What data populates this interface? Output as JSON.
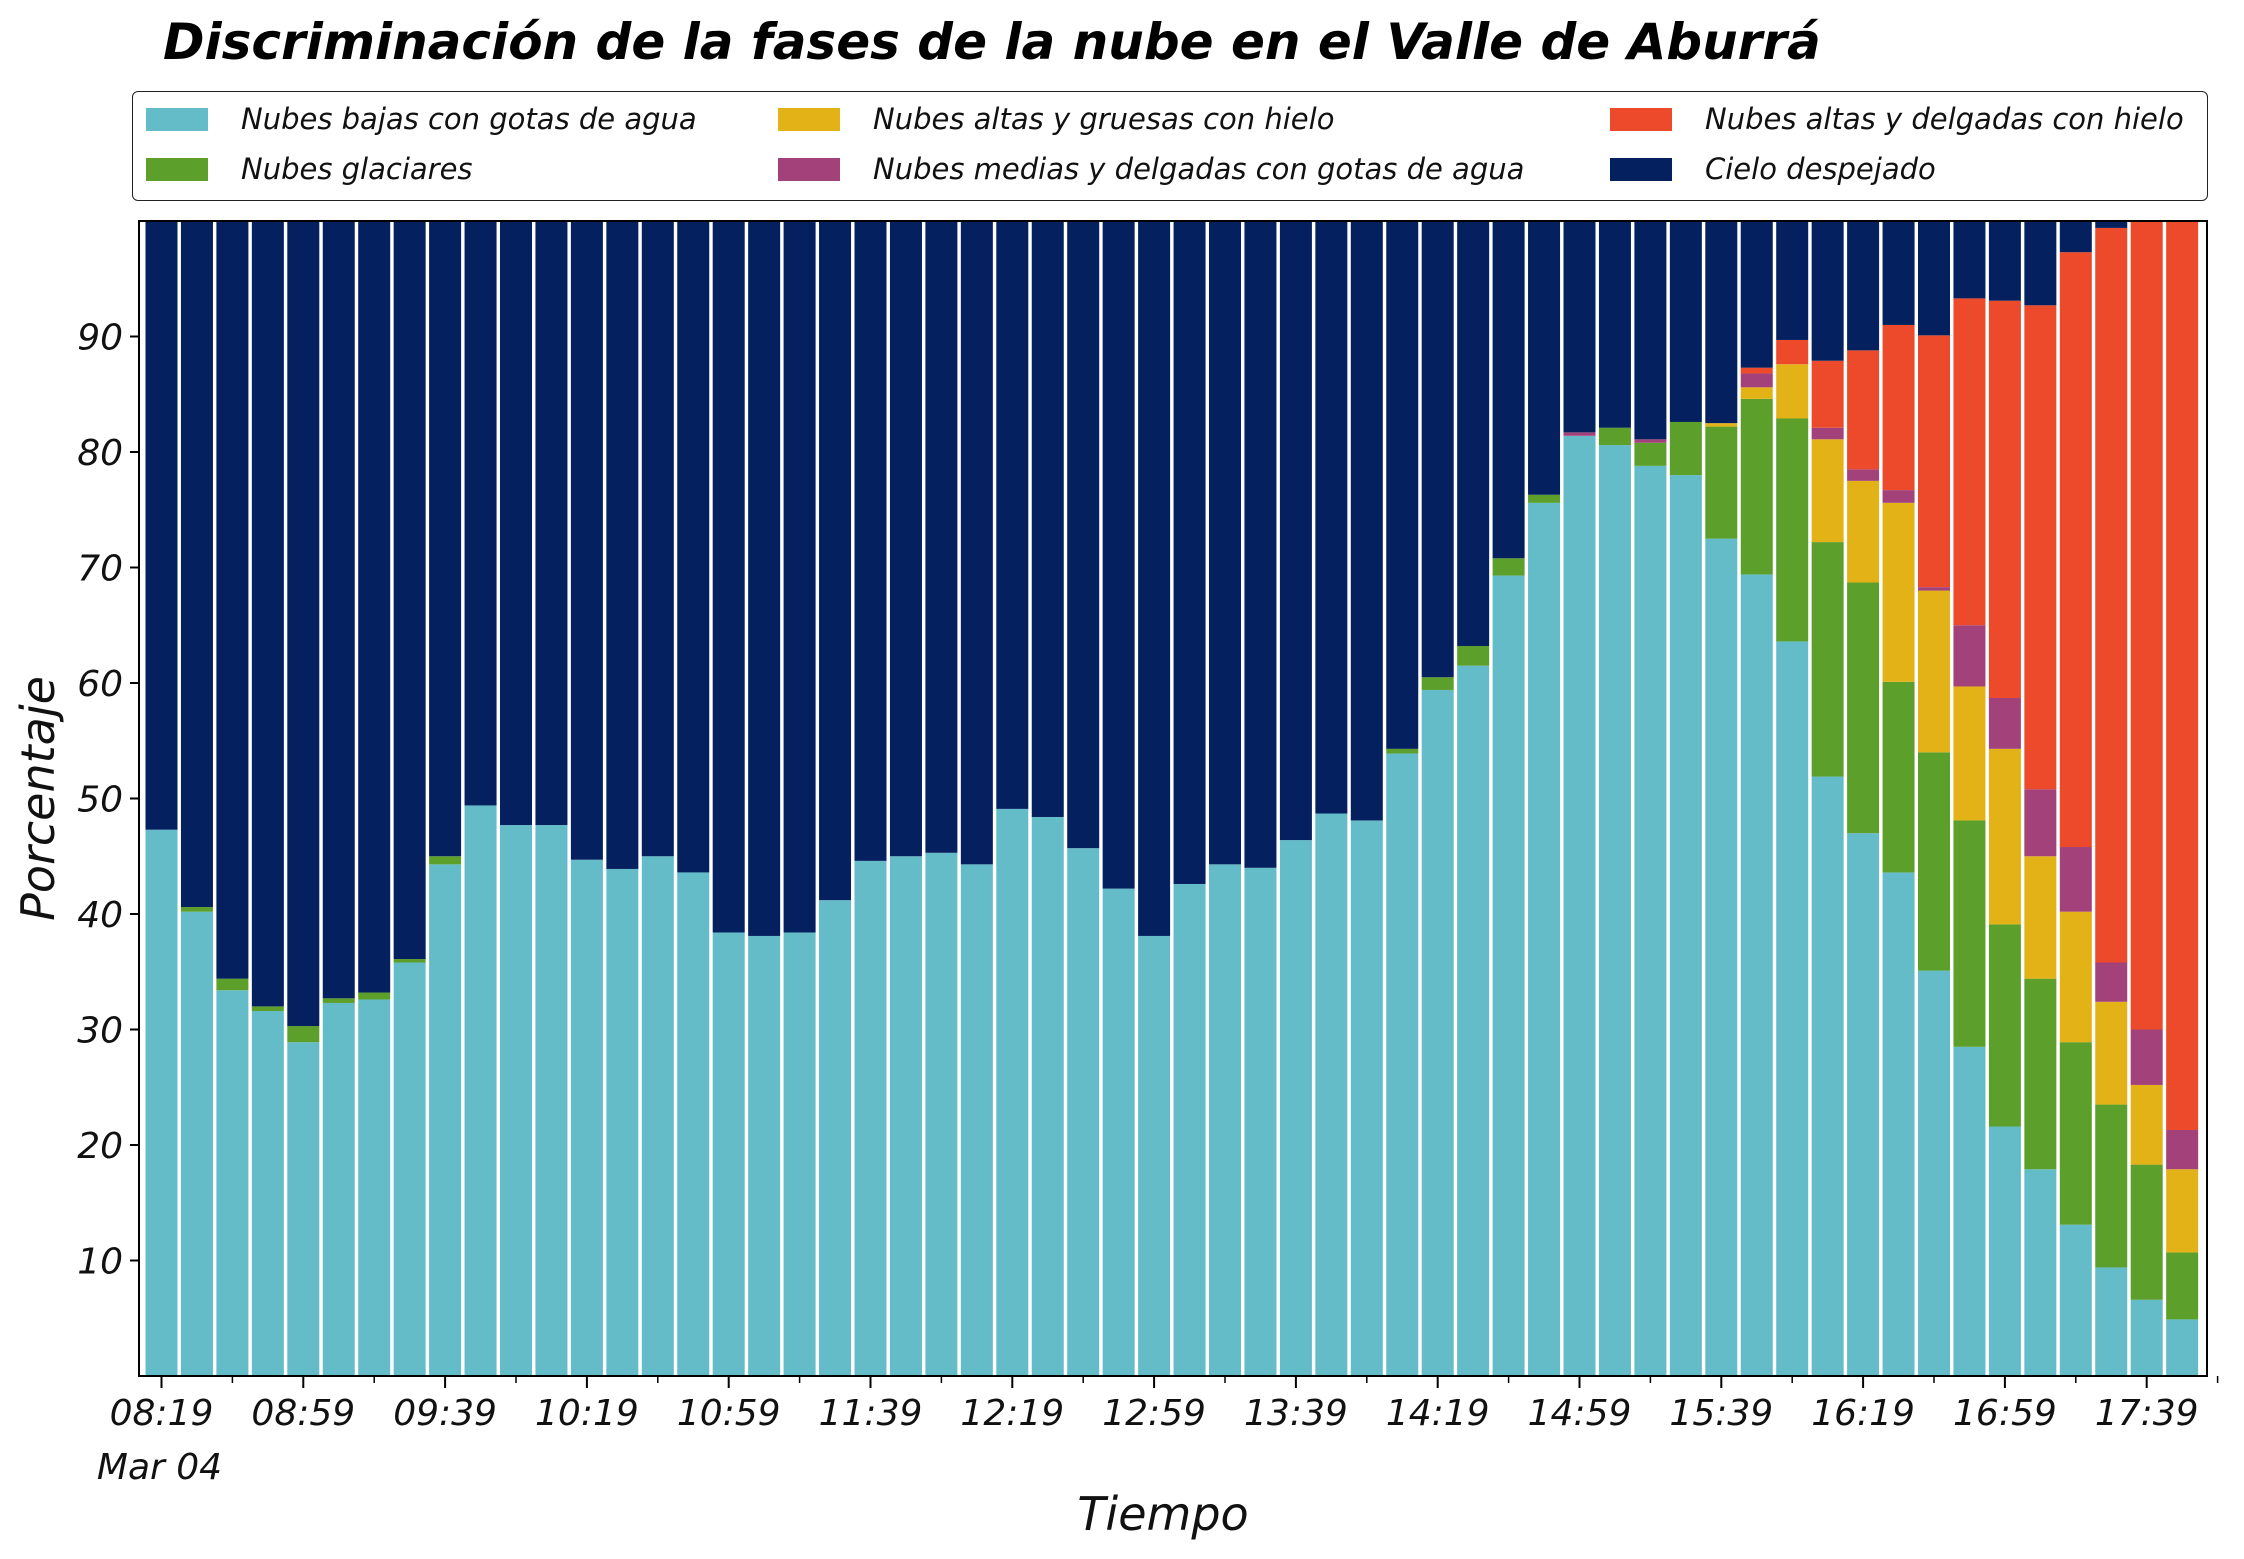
{
  "chart_data": {
    "type": "bar",
    "stacked": true,
    "title": "Discriminación de la fases de la nube en el Valle de Aburrá",
    "xlabel": "Tiempo",
    "ylabel": "Porcentaje",
    "ylim": [
      0,
      100
    ],
    "yticks": [
      10,
      20,
      30,
      40,
      50,
      60,
      70,
      80,
      90
    ],
    "xticks": [
      {
        "index": 0,
        "label": "08:19"
      },
      {
        "index": 4,
        "label": "08:59"
      },
      {
        "index": 8,
        "label": "09:39"
      },
      {
        "index": 12,
        "label": "10:19"
      },
      {
        "index": 16,
        "label": "10:59"
      },
      {
        "index": 20,
        "label": "11:39"
      },
      {
        "index": 24,
        "label": "12:19"
      },
      {
        "index": 28,
        "label": "12:59"
      },
      {
        "index": 32,
        "label": "13:39"
      },
      {
        "index": 36,
        "label": "14:19"
      },
      {
        "index": 40,
        "label": "14:59"
      },
      {
        "index": 44,
        "label": "15:39"
      },
      {
        "index": 48,
        "label": "16:19"
      },
      {
        "index": 52,
        "label": "16:59"
      },
      {
        "index": 56,
        "label": "17:39"
      }
    ],
    "date_label": "Mar 04",
    "grid": false,
    "legend_position": "top",
    "series": [
      {
        "name": "Nubes bajas con gotas de agua",
        "color": "#64bcc8",
        "values": [
          47.3,
          40.2,
          33.4,
          31.6,
          28.9,
          32.3,
          32.6,
          35.8,
          44.3,
          49.4,
          47.7,
          47.7,
          44.7,
          43.9,
          45.0,
          43.6,
          38.4,
          38.1,
          38.4,
          41.2,
          44.6,
          45.0,
          45.3,
          44.3,
          49.1,
          48.4,
          45.7,
          42.2,
          38.1,
          42.6,
          44.3,
          44.0,
          46.4,
          48.7,
          48.1,
          53.9,
          59.4,
          61.5,
          69.3,
          75.6,
          81.4,
          80.6,
          78.8,
          78.0,
          72.5,
          69.4,
          63.6,
          51.9,
          47.0,
          43.6,
          35.1,
          28.5,
          21.6,
          17.9,
          13.1,
          9.4,
          6.6,
          4.9
        ]
      },
      {
        "name": "Nubes glaciares",
        "color": "#5c9f2b",
        "values": [
          0,
          0.4,
          1.0,
          0.4,
          1.4,
          0.4,
          0.6,
          0.3,
          0.7,
          0,
          0,
          0,
          0,
          0,
          0,
          0,
          0,
          0,
          0,
          0,
          0,
          0,
          0,
          0,
          0,
          0,
          0,
          0,
          0,
          0,
          0,
          0,
          0,
          0,
          0,
          0.4,
          1.1,
          1.7,
          1.5,
          0.7,
          0,
          1.5,
          2.0,
          4.6,
          9.7,
          15.2,
          19.3,
          20.3,
          21.7,
          16.5,
          18.9,
          19.6,
          17.5,
          16.5,
          15.8,
          14.1,
          11.7,
          5.8
        ]
      },
      {
        "name": "Nubes altas y gruesas con hielo",
        "color": "#e3b217",
        "values": [
          0,
          0,
          0,
          0,
          0,
          0,
          0,
          0,
          0,
          0,
          0,
          0,
          0,
          0,
          0,
          0,
          0,
          0,
          0,
          0,
          0,
          0,
          0,
          0,
          0,
          0,
          0,
          0,
          0,
          0,
          0,
          0,
          0,
          0,
          0,
          0,
          0,
          0,
          0,
          0,
          0,
          0,
          0,
          0,
          0.3,
          1.0,
          4.7,
          8.9,
          8.8,
          15.5,
          14.0,
          11.6,
          15.2,
          10.6,
          11.3,
          8.9,
          6.9,
          7.2
        ]
      },
      {
        "name": "Nubes medias y delgadas con gotas de agua",
        "color": "#a3417a",
        "values": [
          0,
          0,
          0,
          0,
          0,
          0,
          0,
          0,
          0,
          0,
          0,
          0,
          0,
          0,
          0,
          0,
          0,
          0,
          0,
          0,
          0,
          0,
          0,
          0,
          0,
          0,
          0,
          0,
          0,
          0,
          0,
          0,
          0,
          0,
          0,
          0,
          0,
          0,
          0,
          0,
          0.3,
          0,
          0.3,
          0,
          0,
          1.2,
          0,
          1.0,
          1.0,
          1.1,
          0.3,
          5.3,
          4.4,
          5.8,
          5.6,
          3.4,
          4.8,
          3.4
        ]
      },
      {
        "name": "Nubes altas y delgadas con hielo",
        "color": "#ec4a2a",
        "values": [
          0,
          0,
          0,
          0,
          0,
          0,
          0,
          0,
          0,
          0,
          0,
          0,
          0,
          0,
          0,
          0,
          0,
          0,
          0,
          0,
          0,
          0,
          0,
          0,
          0,
          0,
          0,
          0,
          0,
          0,
          0,
          0,
          0,
          0,
          0,
          0,
          0,
          0,
          0,
          0,
          0,
          0,
          0,
          0,
          0,
          0.5,
          2.1,
          5.8,
          10.3,
          14.3,
          21.8,
          28.3,
          34.4,
          41.9,
          51.5,
          63.6,
          70.1,
          78.7
        ]
      },
      {
        "name": "Cielo despejado",
        "color": "#04205e",
        "values": [
          52.7,
          59.4,
          65.6,
          68.0,
          69.7,
          67.3,
          66.8,
          63.9,
          55.0,
          50.6,
          52.3,
          52.3,
          55.3,
          56.1,
          55.0,
          56.4,
          61.6,
          61.9,
          61.6,
          58.8,
          55.4,
          55.0,
          54.7,
          55.7,
          50.9,
          51.6,
          54.3,
          57.8,
          61.9,
          57.4,
          55.7,
          56.0,
          53.6,
          51.3,
          51.9,
          45.7,
          39.5,
          36.8,
          29.2,
          23.7,
          18.3,
          17.9,
          18.9,
          17.4,
          17.5,
          12.7,
          10.3,
          12.1,
          11.2,
          9.0,
          9.9,
          6.7,
          6.9,
          7.3,
          2.7,
          0.6,
          0.2,
          0
        ]
      }
    ]
  }
}
